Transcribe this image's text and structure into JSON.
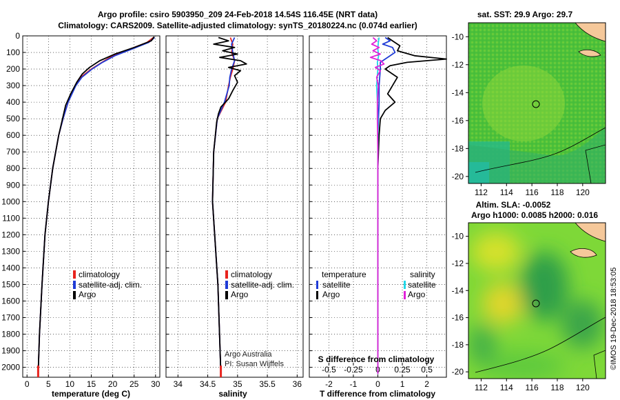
{
  "header": {
    "line1": "Argo profile: csiro 5903950_209 24-Feb-2018 14.54S 116.45E (NRT data)",
    "line2": "Climatology: CARS2009. Satellite-adjusted climatology: synTS_20180224.nc (0.074d earlier)"
  },
  "depth_axis": {
    "ticks": [
      "0",
      "100",
      "200",
      "300",
      "400",
      "500",
      "600",
      "700",
      "800",
      "900",
      "1000",
      "1100",
      "1200",
      "1300",
      "1400",
      "1500",
      "1600",
      "1700",
      "1800",
      "1900",
      "2000"
    ],
    "ylim": [
      0,
      2060
    ]
  },
  "colors": {
    "climatology": "#e8231d",
    "satellite": "#1f3bd6",
    "argo": "#000000",
    "sat_salinity": "#22d8e8",
    "argo_salinity": "#e020d8",
    "land": "#f5c89a"
  },
  "chart_data": [
    {
      "type": "line",
      "title": "",
      "xlabel": "temperature (deg C)",
      "ylabel": "depth",
      "xlim": [
        -1,
        31
      ],
      "ylim": [
        0,
        2060
      ],
      "xticks": [
        "0",
        "5",
        "10",
        "15",
        "20",
        "25",
        "30"
      ],
      "legend": {
        "placement": "bottom-right",
        "entries": [
          "climatology",
          "satellite-adj. clim.",
          "Argo"
        ]
      },
      "series": [
        {
          "name": "climatology",
          "depth": [
            10,
            40,
            80,
            120,
            160,
            200,
            250,
            300,
            400,
            500,
            600,
            800,
            1000,
            1200,
            1500,
            1800,
            2040
          ],
          "values": [
            29.5,
            28.0,
            24.0,
            20.0,
            17.5,
            15.0,
            12.5,
            11.3,
            9.6,
            8.4,
            7.4,
            6.0,
            5.0,
            4.2,
            3.5,
            2.9,
            2.6
          ]
        },
        {
          "name": "satellite-adj. clim.",
          "depth": [
            10,
            40,
            80,
            120,
            160,
            200,
            250,
            300,
            400,
            500,
            600,
            800,
            1000,
            1200,
            1500,
            1800,
            2040
          ],
          "values": [
            29.8,
            28.4,
            24.5,
            20.5,
            17.6,
            15.2,
            12.8,
            11.4,
            9.6,
            8.4,
            7.4,
            6.0,
            5.0,
            4.2,
            3.5,
            2.9,
            2.6
          ]
        },
        {
          "name": "Argo",
          "depth": [
            5,
            30,
            70,
            110,
            150,
            190,
            230,
            280,
            350,
            420,
            500,
            600,
            800,
            1000,
            1200,
            1500,
            1800,
            2040
          ],
          "values": [
            29.7,
            29.0,
            25.0,
            20.5,
            17.0,
            14.6,
            12.9,
            11.6,
            10.2,
            9.0,
            8.3,
            7.4,
            6.0,
            5.0,
            4.2,
            3.5,
            2.9,
            2.6
          ]
        }
      ],
      "marks": [
        {
          "name": "red-reference-bar",
          "x": 2.6,
          "depth_from": 1990,
          "depth_to": 2060
        }
      ]
    },
    {
      "type": "line",
      "xlabel": "salinity",
      "xlim": [
        33.8,
        36.1
      ],
      "ylim": [
        0,
        2060
      ],
      "xticks": [
        "34",
        "34.5",
        "35",
        "35.5",
        "36"
      ],
      "legend": {
        "placement": "bottom-right",
        "entries": [
          "climatology",
          "satellite-adj. clim.",
          "Argo"
        ]
      },
      "annotation": [
        "Argo Australia",
        "PI: Susan Wijffels"
      ],
      "series": [
        {
          "name": "climatology",
          "depth": [
            10,
            50,
            100,
            150,
            200,
            250,
            300,
            400,
            500,
            700,
            1000,
            1500,
            2040
          ],
          "values": [
            34.88,
            34.92,
            34.9,
            34.95,
            34.92,
            34.88,
            34.85,
            34.8,
            34.66,
            34.6,
            34.58,
            34.67,
            34.72
          ]
        },
        {
          "name": "satellite-adj. clim.",
          "depth": [
            10,
            50,
            100,
            150,
            200,
            250,
            300,
            400,
            500,
            700,
            1000,
            1500,
            2040
          ],
          "values": [
            34.95,
            34.9,
            34.92,
            34.95,
            34.9,
            34.87,
            34.86,
            34.78,
            34.66,
            34.6,
            34.58,
            34.67,
            34.72
          ]
        },
        {
          "name": "Argo",
          "depth": [
            10,
            30,
            50,
            70,
            90,
            110,
            130,
            150,
            170,
            190,
            210,
            240,
            280,
            330,
            380,
            430,
            470,
            520,
            700,
            1000,
            1500,
            2040
          ],
          "values": [
            34.68,
            34.85,
            34.6,
            34.95,
            34.75,
            35.0,
            34.7,
            35.05,
            35.15,
            34.85,
            35.05,
            34.95,
            35.0,
            34.92,
            34.85,
            34.72,
            34.68,
            34.65,
            34.6,
            34.58,
            34.67,
            34.72
          ]
        }
      ],
      "marks": [
        {
          "name": "red-reference-bar",
          "x": 34.72,
          "depth_from": 1990,
          "depth_to": 2060
        }
      ]
    },
    {
      "type": "line",
      "xlabel": "T difference from climatology",
      "xlim": [
        -2.8,
        2.8
      ],
      "xticks": [
        "-2",
        "-1",
        "0",
        "1",
        "2"
      ],
      "top_xlabel": "S difference from climatology",
      "top_xlim": [
        -0.7,
        0.7
      ],
      "top_xticks": [
        "-0.5",
        "-0.25",
        "0",
        "0.25",
        "0.5"
      ],
      "legend": {
        "placement": "bottom",
        "entries": [
          "temperature",
          "satellite",
          "Argo",
          "salinity",
          "satellite",
          "Argo"
        ]
      },
      "series": [
        {
          "name": "temperature satellite",
          "depth": [
            10,
            30,
            50,
            70,
            100,
            130,
            160,
            200,
            300,
            400,
            600,
            1000,
            1500,
            2040
          ],
          "values": [
            0.3,
            0.5,
            0.2,
            0.6,
            0.7,
            0.4,
            0.1,
            0.1,
            0.05,
            0.05,
            0.0,
            0.0,
            0.0,
            0.0
          ]
        },
        {
          "name": "temperature Argo",
          "depth": [
            10,
            30,
            60,
            90,
            120,
            140,
            160,
            180,
            200,
            250,
            300,
            350,
            400,
            450,
            500,
            600,
            800,
            1000,
            1500,
            2040
          ],
          "values": [
            0.4,
            0.6,
            0.9,
            0.8,
            1.5,
            2.8,
            1.2,
            0.5,
            0.3,
            0.8,
            0.6,
            0.4,
            0.7,
            0.3,
            0.1,
            0.05,
            0.0,
            0.0,
            0.0,
            0.0
          ]
        },
        {
          "name": "salinity satellite",
          "depth": [
            10,
            40,
            80,
            120,
            160,
            200,
            300,
            400,
            500,
            700,
            1000,
            1500,
            2040
          ],
          "values": [
            0.05,
            0.02,
            0.0,
            0.03,
            -0.02,
            0.0,
            -0.05,
            -0.02,
            0.0,
            0.0,
            0.0,
            0.0,
            0.0
          ]
        },
        {
          "name": "salinity Argo",
          "depth": [
            10,
            30,
            50,
            70,
            90,
            110,
            130,
            150,
            170,
            190,
            210,
            250,
            300,
            400,
            500,
            700,
            1000,
            1500,
            2040
          ],
          "values": [
            -0.2,
            -0.05,
            -0.25,
            0.05,
            -0.2,
            0.1,
            -0.3,
            0.12,
            0.25,
            -0.1,
            0.1,
            -0.05,
            0.02,
            -0.02,
            -0.02,
            0.0,
            0.0,
            0.0,
            0.0
          ]
        }
      ]
    }
  ],
  "map_sst": {
    "title": "sat. SST: 29.9 Argo: 29.7",
    "yticks": [
      "-10",
      "-12",
      "-14",
      "-16",
      "-18",
      "-20"
    ],
    "xticks": [
      "112",
      "114",
      "116",
      "118",
      "120"
    ]
  },
  "map_sla": {
    "title1": "Altim. SLA: -0.0052",
    "title2": "Argo h1000: 0.0085 h2000: 0.016",
    "yticks": [
      "-10",
      "-12",
      "-14",
      "-16",
      "-18",
      "-20"
    ],
    "xticks": [
      "112",
      "114",
      "116",
      "118",
      "120"
    ]
  },
  "footer": {
    "credit": "©IMOS 19-Dec-2018 18:53:05"
  }
}
